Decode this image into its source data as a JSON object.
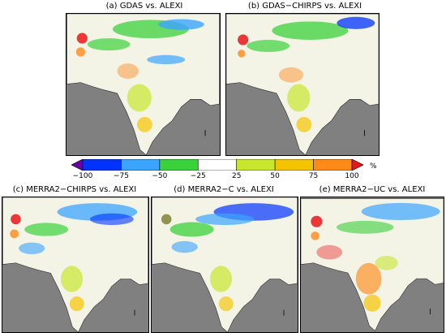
{
  "panels": [
    {
      "title": "(a) GDAS vs. ALEXI"
    },
    {
      "title": "(b) GDAS−CHIRPS vs. ALEXI"
    },
    {
      "title": "(c) MERRA2−CHIRPS vs. ALEXI"
    },
    {
      "title": "(d) MERRA2−C vs. ALEXI"
    },
    {
      "title": "(e) MERRA2−UC vs. ALEXI"
    }
  ],
  "colorbar": {
    "ticks": [
      "−100",
      "−75",
      "−50",
      "−25",
      "25",
      "50",
      "75",
      "100"
    ],
    "unit": "%",
    "colors": [
      "#6a00a8",
      "#0033ff",
      "#3ba4ff",
      "#3ad13a",
      "#ffffff",
      "#c8e62e",
      "#f5c400",
      "#ff8a1a",
      "#e8161a"
    ]
  }
}
